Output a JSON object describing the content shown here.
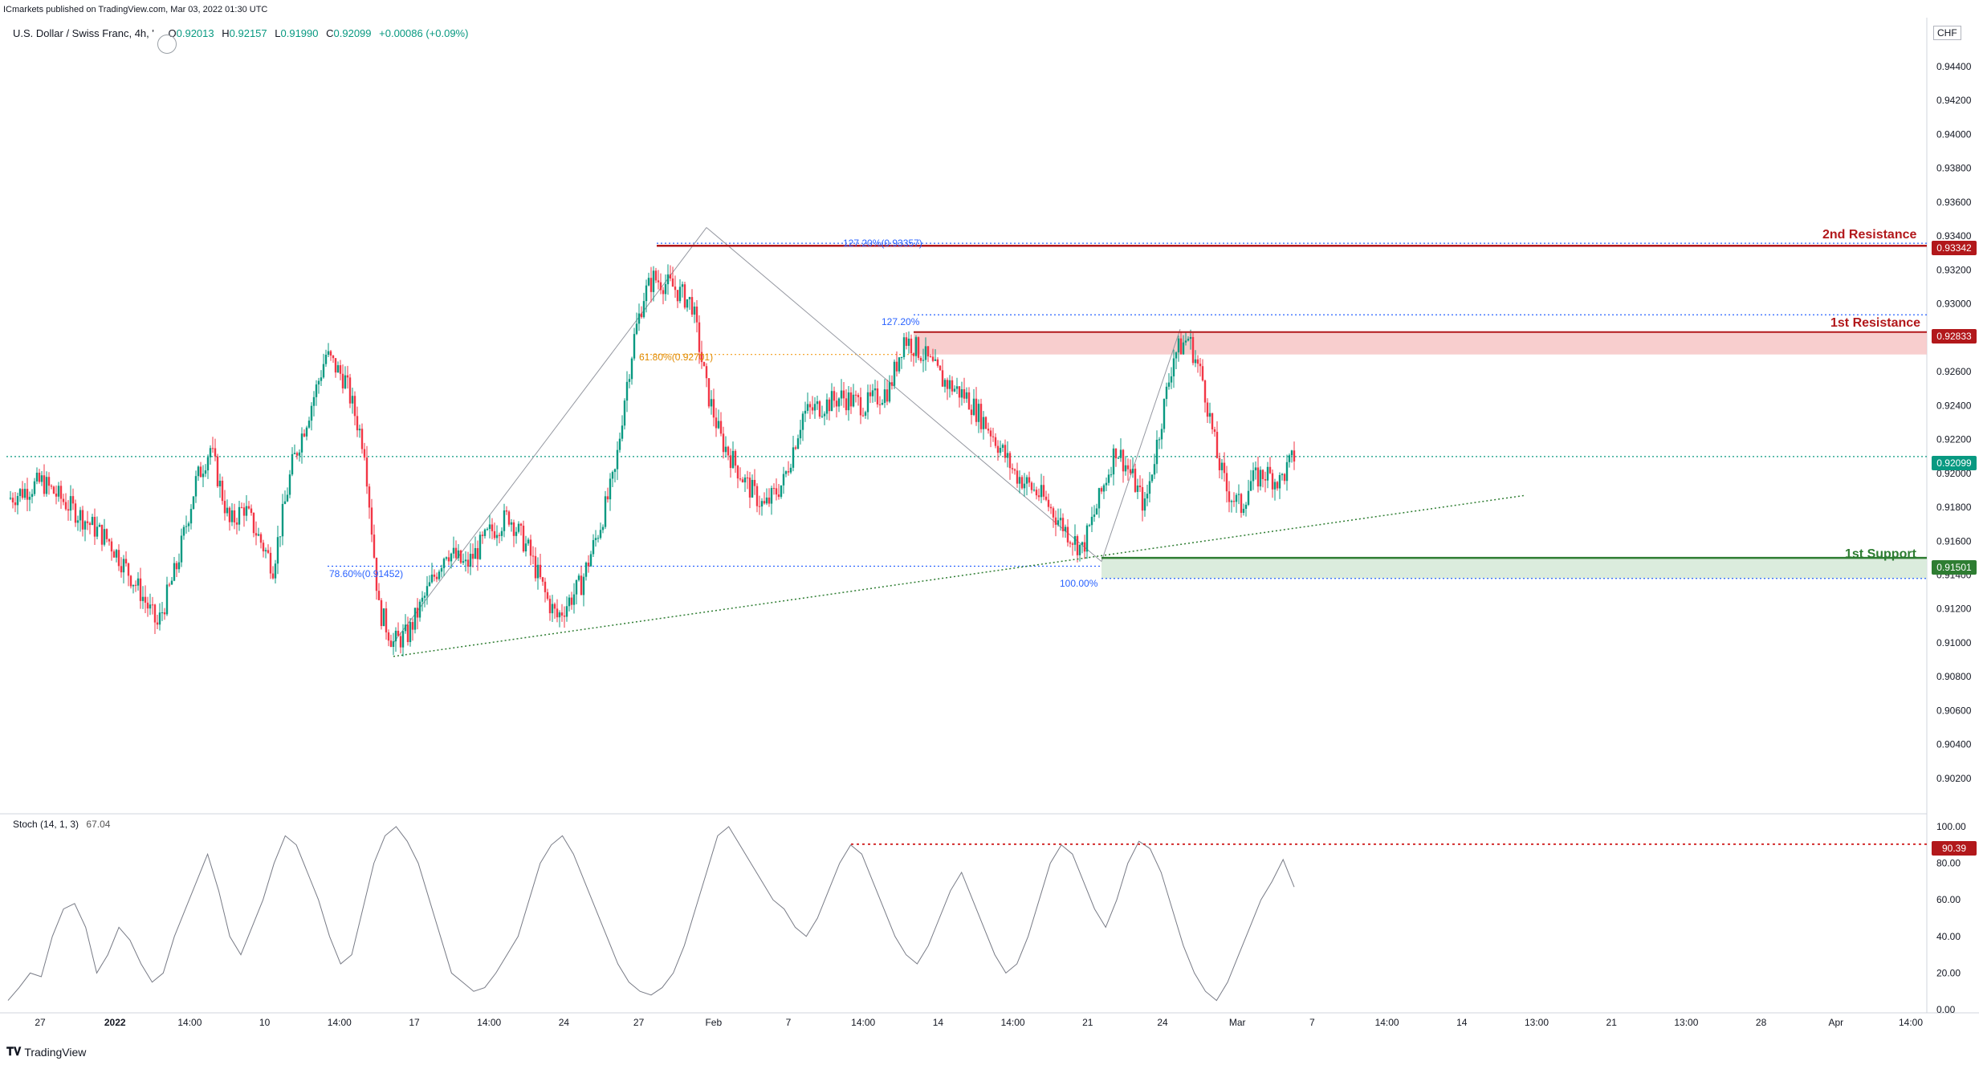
{
  "header": {
    "published": "ICmarkets published on TradingView.com, Mar 03, 2022 01:30 UTC",
    "symbol": "U.S. Dollar / Swiss Franc, 4h, '",
    "o_key": "O",
    "o_val": "0.92013",
    "h_key": "H",
    "h_val": "0.92157",
    "l_key": "L",
    "l_val": "0.91990",
    "c_key": "C",
    "c_val": "0.92099",
    "change": "+0.00086 (+0.09%)"
  },
  "currency": "CHF",
  "annotations": {
    "second_resistance": "2nd Resistance",
    "first_resistance": "1st Resistance",
    "first_support": "1st Support",
    "fib_1272_top": "127.20%(0.93357)",
    "fib_1272_mid": "127.20%",
    "fib_618": "61.80%(0.92701)",
    "fib_786": "78.60%(0.91452)",
    "fib_100": "100.00%"
  },
  "price_badges": {
    "second_resistance": "0.93342",
    "first_resistance": "0.92833",
    "last": "0.92099",
    "first_support": "0.91501",
    "stoch_level": "90.39"
  },
  "stoch": {
    "label": "Stoch (14, 1, 3)",
    "value": "67.04"
  },
  "logo": {
    "text": "TradingView"
  },
  "colors": {
    "up": "#089981",
    "down": "#f23645",
    "resistance": "#b2181b",
    "support": "#2e7d32",
    "zone_res": "#f7c5c5",
    "zone_sup": "#d7ead9",
    "fib_blue": "#2962ff",
    "fib_orange": "#f29d1b"
  },
  "chart_data": {
    "type": "candlestick",
    "title": "U.S. Dollar / Swiss Franc, 4h",
    "price_axis": {
      "range": [
        0.9002,
        0.9465
      ],
      "ticks": [
        "0.94400",
        "0.94200",
        "0.94000",
        "0.93800",
        "0.93600",
        "0.93400",
        "0.93200",
        "0.93000",
        "0.92800",
        "0.92600",
        "0.92400",
        "0.92200",
        "0.92000",
        "0.91800",
        "0.91600",
        "0.91400",
        "0.91200",
        "0.91000",
        "0.90800",
        "0.90600",
        "0.90400",
        "0.90200"
      ]
    },
    "time_axis": {
      "labels": [
        "27",
        "2022",
        "14:00",
        "10",
        "14:00",
        "17",
        "14:00",
        "24",
        "27",
        "Feb",
        "7",
        "14:00",
        "14",
        "14:00",
        "21",
        "24",
        "Mar",
        "7",
        "14:00",
        "14",
        "13:00",
        "21",
        "13:00",
        "28",
        "Apr",
        "14:00"
      ]
    },
    "close_path": [
      [
        0,
        0.9185
      ],
      [
        14,
        0.9195
      ],
      [
        30,
        0.9175
      ],
      [
        42,
        0.916
      ],
      [
        55,
        0.913
      ],
      [
        62,
        0.911
      ],
      [
        70,
        0.9145
      ],
      [
        78,
        0.9195
      ],
      [
        84,
        0.9215
      ],
      [
        92,
        0.917
      ],
      [
        98,
        0.918
      ],
      [
        110,
        0.9145
      ],
      [
        118,
        0.9205
      ],
      [
        128,
        0.925
      ],
      [
        132,
        0.927
      ],
      [
        140,
        0.9255
      ],
      [
        148,
        0.9215
      ],
      [
        154,
        0.912
      ],
      [
        160,
        0.91
      ],
      [
        166,
        0.9105
      ],
      [
        174,
        0.913
      ],
      [
        182,
        0.9155
      ],
      [
        190,
        0.9145
      ],
      [
        200,
        0.9165
      ],
      [
        208,
        0.9175
      ],
      [
        216,
        0.9155
      ],
      [
        224,
        0.9125
      ],
      [
        228,
        0.9115
      ],
      [
        238,
        0.9135
      ],
      [
        246,
        0.917
      ],
      [
        252,
        0.92
      ],
      [
        256,
        0.9245
      ],
      [
        260,
        0.928
      ],
      [
        264,
        0.9305
      ],
      [
        268,
        0.9315
      ],
      [
        276,
        0.931
      ],
      [
        284,
        0.93
      ],
      [
        290,
        0.925
      ],
      [
        296,
        0.922
      ],
      [
        306,
        0.9195
      ],
      [
        314,
        0.918
      ],
      [
        322,
        0.9195
      ],
      [
        330,
        0.9235
      ],
      [
        338,
        0.924
      ],
      [
        346,
        0.9245
      ],
      [
        356,
        0.924
      ],
      [
        366,
        0.925
      ],
      [
        372,
        0.928
      ],
      [
        380,
        0.927
      ],
      [
        388,
        0.9255
      ],
      [
        398,
        0.9245
      ],
      [
        408,
        0.9225
      ],
      [
        418,
        0.92
      ],
      [
        430,
        0.9185
      ],
      [
        440,
        0.9165
      ],
      [
        446,
        0.9155
      ],
      [
        452,
        0.918
      ],
      [
        460,
        0.9215
      ],
      [
        466,
        0.92
      ],
      [
        472,
        0.918
      ],
      [
        478,
        0.9225
      ],
      [
        484,
        0.927
      ],
      [
        490,
        0.928
      ],
      [
        496,
        0.9255
      ],
      [
        502,
        0.921
      ],
      [
        506,
        0.919
      ],
      [
        512,
        0.918
      ],
      [
        516,
        0.9195
      ],
      [
        522,
        0.92
      ],
      [
        528,
        0.9195
      ],
      [
        534,
        0.921
      ]
    ],
    "levels": {
      "second_resistance": 0.93342,
      "first_resistance": 0.92833,
      "resistance_zone": [
        0.92701,
        0.92833
      ],
      "first_support": 0.91501,
      "support_zone": [
        0.9138,
        0.91501
      ],
      "last_price": 0.92099,
      "fib_1272_upper": 0.93357,
      "fib_1272_lower": 0.92935,
      "fib_618": 0.92701,
      "fib_786": 0.91452,
      "fib_100": 0.9138
    },
    "trendline": {
      "from": [
        160,
        0.9092
      ],
      "to": [
        630,
        0.9187
      ]
    },
    "stoch": {
      "range": [
        0,
        100
      ],
      "ticks": [
        "100.00",
        "80.00",
        "60.00",
        "40.00",
        "20.00",
        "0.00"
      ],
      "level": 90.39,
      "values": [
        5,
        12,
        20,
        18,
        40,
        55,
        58,
        45,
        20,
        30,
        45,
        38,
        25,
        15,
        20,
        40,
        55,
        70,
        85,
        65,
        40,
        30,
        45,
        60,
        80,
        95,
        90,
        75,
        60,
        40,
        25,
        30,
        55,
        80,
        95,
        100,
        92,
        80,
        60,
        40,
        20,
        15,
        10,
        12,
        20,
        30,
        40,
        60,
        80,
        90,
        95,
        85,
        70,
        55,
        40,
        25,
        15,
        10,
        8,
        12,
        20,
        35,
        55,
        75,
        95,
        100,
        90,
        80,
        70,
        60,
        55,
        45,
        40,
        50,
        65,
        80,
        90,
        85,
        70,
        55,
        40,
        30,
        25,
        35,
        50,
        65,
        75,
        60,
        45,
        30,
        20,
        25,
        40,
        60,
        80,
        90,
        85,
        70,
        55,
        45,
        60,
        80,
        92,
        88,
        75,
        55,
        35,
        20,
        10,
        5,
        15,
        30,
        45,
        60,
        70,
        82,
        67
      ]
    }
  }
}
